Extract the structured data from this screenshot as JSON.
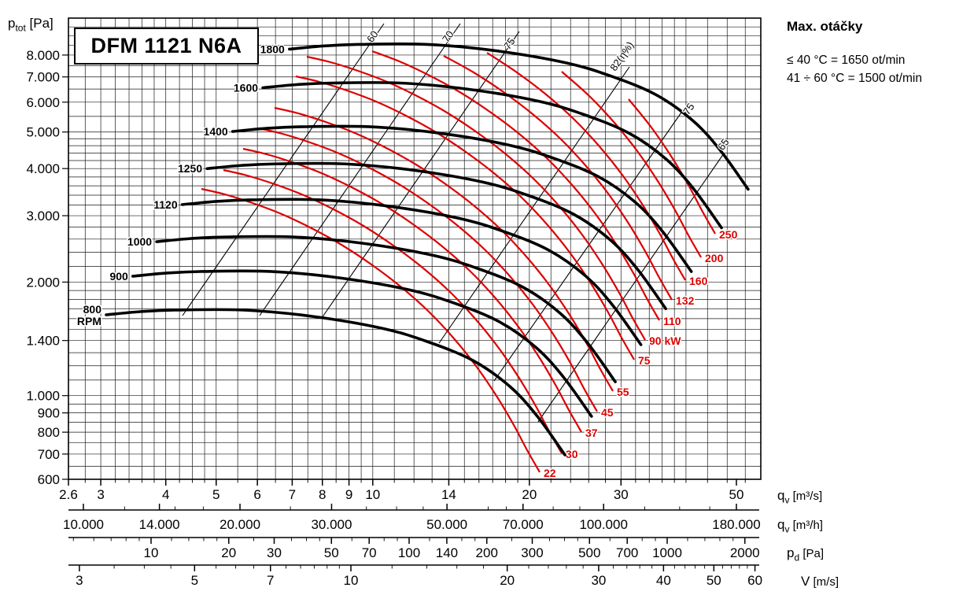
{
  "title": "DFM 1121 N6A",
  "ptot_label": {
    "main": "p",
    "sub": "tot",
    "rest": " [Pa]"
  },
  "max_speed": {
    "title": "Max. otáčky",
    "line1": "≤ 40 °C = 1650 ot/min",
    "line2": "41 ÷ 60 °C = 1500 ot/min"
  },
  "axis_units": [
    {
      "main": "q",
      "sub": "v",
      "rest": " [m³/s]"
    },
    {
      "main": "q",
      "sub": "v",
      "rest": " [m³/h]"
    },
    {
      "main": "p",
      "sub": "d",
      "rest": " [Pa]"
    },
    {
      "main": "V",
      "sub": "",
      "rest": " [m/s]"
    }
  ],
  "chart_data": {
    "type": "line",
    "title": "DFM 1121 N6A fan performance curves",
    "x_axis": {
      "label": "qv [m3/s]",
      "scale": "log",
      "range": [
        2.6,
        55
      ],
      "tick_labels": [
        "2.6",
        "3",
        "4",
        "5",
        "6",
        "7",
        "8",
        "9",
        "10",
        "14",
        "20",
        "30",
        "50"
      ]
    },
    "y_axis": {
      "label": "ptot [Pa]",
      "scale": "log",
      "range": [
        600,
        10000
      ],
      "tick_labels": [
        "8.000",
        "7.000",
        "6.000",
        "5.000",
        "4.000",
        "3.000",
        "2.000",
        "1.400",
        "1.000",
        "900",
        "800",
        "700",
        "600"
      ],
      "tick_values": [
        8000,
        7000,
        6000,
        5000,
        4000,
        3000,
        2000,
        1400,
        1000,
        900,
        800,
        700,
        600
      ]
    },
    "rpm_curves": [
      {
        "rpm": 800,
        "label": "800",
        "label2": "RPM",
        "q_start": 3.06,
        "p_start": 1640,
        "q_end": 23.3,
        "p_end": 700
      },
      {
        "rpm": 900,
        "label": "900",
        "q_start": 3.44,
        "p_start": 2070,
        "q_end": 26.2,
        "p_end": 880
      },
      {
        "rpm": 1000,
        "label": "1000",
        "q_start": 3.83,
        "p_start": 2560,
        "q_end": 29.1,
        "p_end": 1090
      },
      {
        "rpm": 1120,
        "label": "1120",
        "q_start": 4.28,
        "p_start": 3210,
        "q_end": 32.6,
        "p_end": 1370
      },
      {
        "rpm": 1250,
        "label": "1250",
        "q_start": 4.78,
        "p_start": 3990,
        "q_end": 36.4,
        "p_end": 1700
      },
      {
        "rpm": 1400,
        "label": "1400",
        "q_start": 5.36,
        "p_start": 5010,
        "q_end": 40.8,
        "p_end": 2130
      },
      {
        "rpm": 1600,
        "label": "1600",
        "q_start": 6.12,
        "p_start": 6540,
        "q_end": 46.6,
        "p_end": 2790
      },
      {
        "rpm": 1800,
        "label": "1800",
        "q_start": 6.89,
        "p_start": 8280,
        "q_end": 52.4,
        "p_end": 3530
      }
    ],
    "power_curves_kW": [
      {
        "kw": 22,
        "label": "22"
      },
      {
        "kw": 30,
        "label": "30"
      },
      {
        "kw": 37,
        "label": "37"
      },
      {
        "kw": 45,
        "label": "45"
      },
      {
        "kw": 55,
        "label": "55"
      },
      {
        "kw": 75,
        "label": "75"
      },
      {
        "kw": 90,
        "label": "90 kW"
      },
      {
        "kw": 110,
        "label": "110"
      },
      {
        "kw": 132,
        "label": "132"
      },
      {
        "kw": 160,
        "label": "160"
      },
      {
        "kw": 200,
        "label": "200"
      },
      {
        "kw": 250,
        "label": "250"
      }
    ],
    "efficiency_lines": [
      {
        "label": "60",
        "side": "left"
      },
      {
        "label": "70",
        "side": "left"
      },
      {
        "label": "75",
        "side": "left"
      },
      {
        "label": "82(η%)",
        "side": "left"
      },
      {
        "label": "75",
        "side": "right"
      },
      {
        "label": "65",
        "side": "right"
      }
    ],
    "legend_position": "none",
    "grid": true,
    "colors": {
      "rpm_curve": "#000000",
      "power_curve": "#dd0000",
      "grid": "#1a1a1a"
    }
  },
  "axis_rows": [
    {
      "name": "qv_m3s",
      "ticks": [
        {
          "label": "2.6",
          "v": 2.6
        },
        {
          "label": "3",
          "v": 3
        },
        {
          "label": "4",
          "v": 4
        },
        {
          "label": "5",
          "v": 5
        },
        {
          "label": "6",
          "v": 6
        },
        {
          "label": "7",
          "v": 7
        },
        {
          "label": "8",
          "v": 8
        },
        {
          "label": "9",
          "v": 9
        },
        {
          "label": "10",
          "v": 10
        },
        {
          "label": "14",
          "v": 14
        },
        {
          "label": "20",
          "v": 20
        },
        {
          "label": "30",
          "v": 30
        },
        {
          "label": "50",
          "v": 50
        }
      ]
    },
    {
      "name": "qv_m3h",
      "ticks": [
        {
          "label": "10.000",
          "v": 10000
        },
        {
          "label": "14.000",
          "v": 14000
        },
        {
          "label": "20.000",
          "v": 20000
        },
        {
          "label": "30.000",
          "v": 30000
        },
        {
          "label": "50.000",
          "v": 50000
        },
        {
          "label": "70.000",
          "v": 70000
        },
        {
          "label": "100.000",
          "v": 100000
        },
        {
          "label": "180.000",
          "v": 180000
        }
      ]
    },
    {
      "name": "pd_Pa",
      "ticks": [
        {
          "label": "10",
          "v": 10
        },
        {
          "label": "20",
          "v": 20
        },
        {
          "label": "30",
          "v": 30
        },
        {
          "label": "50",
          "v": 50
        },
        {
          "label": "70",
          "v": 70
        },
        {
          "label": "100",
          "v": 100
        },
        {
          "label": "140",
          "v": 140
        },
        {
          "label": "200",
          "v": 200
        },
        {
          "label": "300",
          "v": 300
        },
        {
          "label": "500",
          "v": 500
        },
        {
          "label": "700",
          "v": 700
        },
        {
          "label": "1000",
          "v": 1000
        },
        {
          "label": "2000",
          "v": 2000
        }
      ]
    },
    {
      "name": "V_ms",
      "ticks": [
        {
          "label": "3",
          "v": 3
        },
        {
          "label": "5",
          "v": 5
        },
        {
          "label": "7",
          "v": 7
        },
        {
          "label": "10",
          "v": 10
        },
        {
          "label": "20",
          "v": 20
        },
        {
          "label": "30",
          "v": 30
        },
        {
          "label": "40",
          "v": 40
        },
        {
          "label": "50",
          "v": 50
        },
        {
          "label": "60",
          "v": 60
        }
      ]
    }
  ]
}
